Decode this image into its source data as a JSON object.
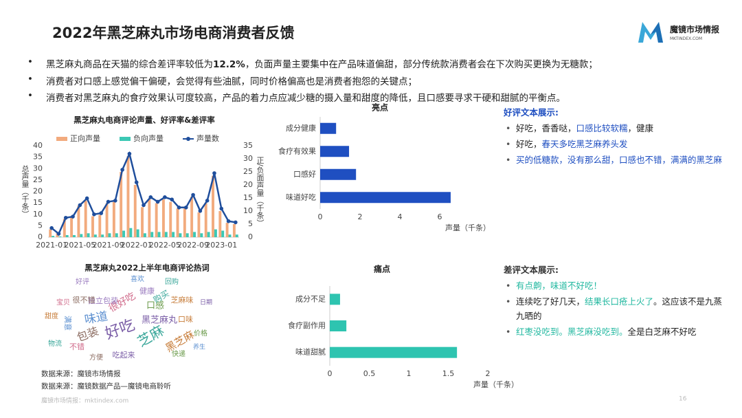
{
  "header": {
    "title": "2022年黑芝麻丸市场电商消费者反馈",
    "logo": "魔镜市场情报",
    "logo_sub": "MKTINDEX.COM"
  },
  "bullets": [
    [
      {
        "text": "黑芝麻丸商品在天猫的综合差评率较低为"
      },
      {
        "text": "12.2%",
        "bold": true
      },
      {
        "text": "，负面声量主要集中在产品味道偏甜，部分传统款消费者会在下次购买更换为无糖款；"
      }
    ],
    [
      {
        "text": "消费者对口感上感觉偏干偏硬，会觉得有些油腻，同时价格偏高也是消费者抱怨的关键点；"
      }
    ],
    [
      {
        "text": "消费者对黑芝麻丸的食疗效果认可度较高，产品的着力点应减少糖的摄入量和甜度的降低，且口感要寻求干硬和甜腻的平衡点。"
      }
    ]
  ],
  "chart_data": [
    {
      "type": "combo",
      "title": "黑芝麻丸电商评论声量、好评率&差评率",
      "categories": [
        "2021-01",
        null,
        null,
        null,
        "2021-05",
        null,
        null,
        null,
        "2021-09",
        null,
        null,
        null,
        "2022-01",
        null,
        null,
        null,
        "2022-05",
        null,
        null,
        null,
        "2022-09",
        null,
        null,
        null,
        "2023-01",
        null,
        null
      ],
      "series": [
        {
          "name": "正向声量",
          "type": "bar",
          "axis": "y2",
          "color": "#f2ab7e",
          "values": [
            3,
            1.5,
            7,
            7.5,
            12,
            14,
            8,
            8.5,
            13,
            13.5,
            25,
            31,
            20,
            11.5,
            14.5,
            13,
            14.5,
            13.5,
            11,
            11,
            15.5,
            9.5,
            13,
            23.5,
            10,
            5.5,
            5
          ]
        },
        {
          "name": "负向声量",
          "type": "bar",
          "axis": "y2",
          "color": "#3cc8b4",
          "values": [
            0.5,
            0.3,
            0.8,
            0.8,
            1.2,
            1.5,
            1,
            1,
            1.5,
            1.5,
            2.5,
            3.5,
            3,
            1.5,
            2,
            2,
            2,
            2,
            1.5,
            1.5,
            2,
            1.5,
            2,
            3,
            2.5,
            1,
            1
          ]
        },
        {
          "name": "声量数",
          "type": "line",
          "color": "#1f4e9c",
          "values": [
            4,
            1.5,
            8.5,
            9,
            14,
            17,
            10,
            10.5,
            15.5,
            16,
            29.5,
            36.5,
            24,
            14,
            17.5,
            15.5,
            17.5,
            16.5,
            13,
            13,
            18.5,
            11.5,
            16,
            28,
            12.5,
            7,
            6.5
          ]
        }
      ],
      "ylabel": "总声量（千条）",
      "y2label": "正/负面声量（千条）",
      "ylim": [
        0,
        40
      ],
      "yticks": [
        0,
        5,
        10,
        15,
        20,
        25,
        30,
        35,
        40
      ],
      "y2lim": [
        0,
        35
      ],
      "y2ticks": [
        0,
        5,
        10,
        15,
        20,
        25,
        30,
        35
      ]
    },
    {
      "type": "barh",
      "title": "亮点",
      "categories": [
        "成分健康",
        "食疗有效果",
        "口感好",
        "味道好吃"
      ],
      "values": [
        0.8,
        1.45,
        1.8,
        6.55
      ],
      "color": "#1f4fc1",
      "xlabel": "声量（千条）",
      "xlim": [
        0,
        7
      ],
      "xticks": [
        0,
        2,
        4,
        6
      ]
    },
    {
      "type": "barh",
      "title": "痛点",
      "categories": [
        "成分不足",
        "食疗副作用",
        "味道甜腻"
      ],
      "values": [
        0.13,
        0.21,
        1.61
      ],
      "color": "#2ec4b0",
      "xlabel": "声量（千条）",
      "xlim": [
        0,
        2
      ],
      "xticks": [
        0,
        0.5,
        1,
        1.5,
        2
      ]
    }
  ],
  "wordcloud": {
    "title": "黑芝麻丸2022上半年电商评论热词",
    "words": [
      "好吃",
      "芝麻",
      "黑芝麻",
      "味道",
      "包装",
      "很好吃",
      "口感",
      "独立包装",
      "黑芝麻丸",
      "购买",
      "芝麻味",
      "满意",
      "很不错",
      "不错",
      "快递",
      "健康",
      "吃起来",
      "物流",
      "口味",
      "喜欢",
      "方便",
      "宝贝",
      "价格",
      "好评",
      "日期",
      "回购",
      "甜度",
      "养生"
    ]
  },
  "good_reviews": {
    "title": "好评文本展示:",
    "items": [
      [
        {
          "text": "好吃，香香哒，"
        },
        {
          "text": "口感比较软糯",
          "highlight": true
        },
        {
          "text": "，健康"
        }
      ],
      [
        {
          "text": "好吃，"
        },
        {
          "text": "春天多吃黑芝麻养头发",
          "highlight": true
        }
      ],
      [
        {
          "text": "买的低糖款，没有那么甜，口感也不错，满满的黑芝麻",
          "highlight": true
        }
      ]
    ]
  },
  "bad_reviews": {
    "title": "差评文本展示:",
    "items": [
      [
        {
          "text": "有点齁，味道不好吃！",
          "highlight": true
        }
      ],
      [
        {
          "text": "连续吃了好几天，"
        },
        {
          "text": "结果长口疮上火了",
          "highlight": true
        },
        {
          "text": "。这应该不是九蒸九晒的"
        }
      ],
      [
        {
          "text": "红枣没吃到。黑芝麻没吃到。",
          "highlight": true
        },
        {
          "text": "全是白芝麻不好吃"
        }
      ]
    ]
  },
  "sources": [
    "数据来源：魔镜市场情报",
    "数据来源：魔镜数据产品—魔镜电商聆听"
  ],
  "footer": {
    "left": "魔镜市场情报：mktindex.com",
    "page": "16"
  }
}
